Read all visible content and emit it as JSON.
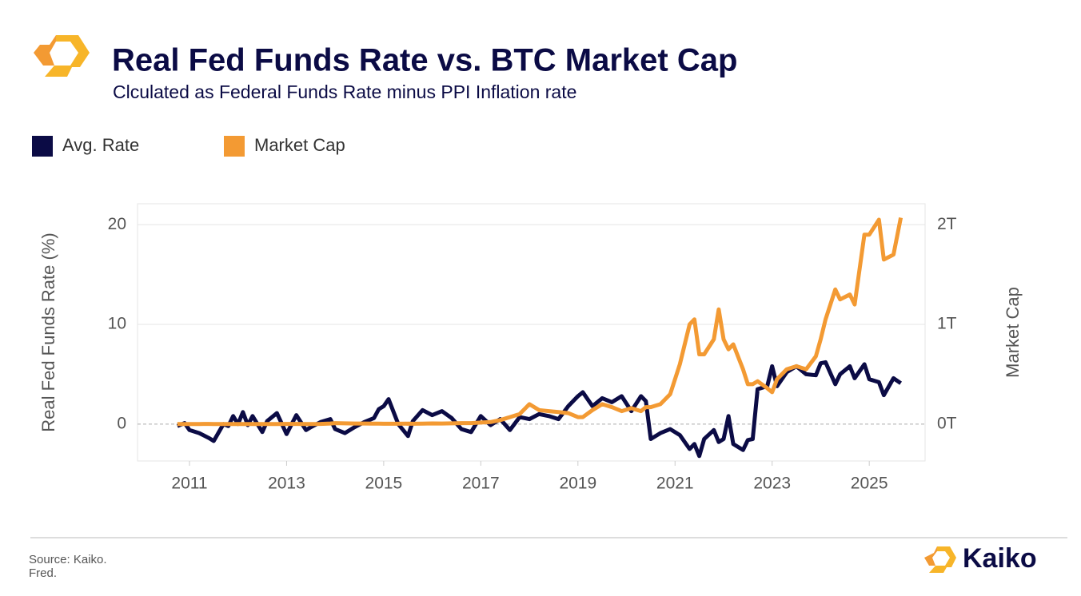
{
  "chart_data": {
    "type": "line",
    "title": "Real Fed Funds Rate vs. BTC Market Cap",
    "subtitle": "Clculated as Federal Funds Rate minus PPI Inflation rate",
    "ylabel": "Real Fed Funds Rate (%)",
    "y2label": "Market Cap",
    "source": [
      "Source: Kaiko.",
      "Fred."
    ],
    "brand": "Kaiko",
    "x": [
      2010.75,
      2010.9,
      2011.0,
      2011.2,
      2011.4,
      2011.5,
      2011.7,
      2011.8,
      2011.9,
      2012.0,
      2012.1,
      2012.2,
      2012.3,
      2012.5,
      2012.6,
      2012.8,
      2013.0,
      2013.2,
      2013.4,
      2013.5,
      2013.7,
      2013.9,
      2014.0,
      2014.2,
      2014.4,
      2014.6,
      2014.8,
      2014.9,
      2015.0,
      2015.1,
      2015.3,
      2015.5,
      2015.6,
      2015.8,
      2016.0,
      2016.2,
      2016.4,
      2016.6,
      2016.8,
      2017.0,
      2017.2,
      2017.4,
      2017.6,
      2017.8,
      2018.0,
      2018.2,
      2018.4,
      2018.6,
      2018.8,
      2019.0,
      2019.1,
      2019.3,
      2019.5,
      2019.7,
      2019.9,
      2020.1,
      2020.3,
      2020.4,
      2020.5,
      2020.7,
      2020.9,
      2021.1,
      2021.3,
      2021.4,
      2021.5,
      2021.6,
      2021.8,
      2021.9,
      2022.0,
      2022.1,
      2022.2,
      2022.4,
      2022.5,
      2022.6,
      2022.7,
      2022.9,
      2023.0,
      2023.1,
      2023.3,
      2023.5,
      2023.7,
      2023.9,
      2024.0,
      2024.1,
      2024.3,
      2024.4,
      2024.6,
      2024.7,
      2024.9,
      2025.0,
      2025.2,
      2025.3,
      2025.5,
      2025.65
    ],
    "series": [
      {
        "name": "Avg. Rate",
        "color": "#0b0b45",
        "values": [
          -0.2,
          0.1,
          -0.6,
          -0.9,
          -1.4,
          -1.7,
          0,
          -0.2,
          0.8,
          0,
          1.2,
          -0.1,
          0.8,
          -0.8,
          0.3,
          1.1,
          -1.0,
          0.9,
          -0.6,
          -0.3,
          0.2,
          0.5,
          -0.5,
          -0.9,
          -0.3,
          0.2,
          0.6,
          1.5,
          1.8,
          2.5,
          0,
          -1.2,
          0.3,
          1.4,
          0.9,
          1.3,
          0.6,
          -0.5,
          -0.8,
          0.8,
          -0.1,
          0.5,
          -0.6,
          0.7,
          0.5,
          1.0,
          0.8,
          0.5,
          1.8,
          2.8,
          3.2,
          1.8,
          2.6,
          2.2,
          2.8,
          1.3,
          2.8,
          2.3,
          -1.5,
          -0.9,
          -0.5,
          -1.1,
          -2.5,
          -2.0,
          -3.2,
          -1.5,
          -0.6,
          -1.8,
          -1.5,
          0.8,
          -2.0,
          -2.6,
          -1.6,
          -1.5,
          3.5,
          3.8,
          5.8,
          3.8,
          5.2,
          5.8,
          5.0,
          4.9,
          6.1,
          6.2,
          4.0,
          5.0,
          5.8,
          4.6,
          6.0,
          4.5,
          4.2,
          2.9,
          4.6,
          4.1
        ]
      },
      {
        "name": "Market Cap",
        "color": "#f39a33",
        "axis": "y2",
        "values": [
          100000000.0,
          100000000.0,
          200000000.0,
          1000000000.0,
          2000000000.0,
          1000000000.0,
          500000000.0,
          400000000.0,
          400000000.0,
          500000000.0,
          500000000.0,
          600000000.0,
          700000000.0,
          1000000000.0,
          1200000000.0,
          1200000000.0,
          1500000000.0,
          1400000000.0,
          1300000000.0,
          1100000000.0,
          1500000000.0,
          6000000000.0,
          10000000000.0,
          7000000000.0,
          6000000000.0,
          6000000000.0,
          4500000000.0,
          4000000000.0,
          3500000000.0,
          3500000000.0,
          3500000000.0,
          4000000000.0,
          3500000000.0,
          4000000000.0,
          6500000000.0,
          6000000000.0,
          7000000000.0,
          10000000000.0,
          10000000000.0,
          15000000000.0,
          20000000000.0,
          40000000000.0,
          70000000000.0,
          100000000000.0,
          200000000000.0,
          140000000000.0,
          130000000000.0,
          120000000000.0,
          110000000000.0,
          70000000000.0,
          70000000000.0,
          140000000000.0,
          200000000000.0,
          170000000000.0,
          130000000000.0,
          160000000000.0,
          130000000000.0,
          170000000000.0,
          170000000000.0,
          200000000000.0,
          300000000000.0,
          600000000000.0,
          1000000000000.0,
          1050000000000.0,
          700000000000.0,
          700000000000.0,
          850000000000.0,
          1150000000000.0,
          850000000000.0,
          750000000000.0,
          800000000000.0,
          550000000000.0,
          400000000000.0,
          400000000000.0,
          430000000000.0,
          360000000000.0,
          320000000000.0,
          450000000000.0,
          550000000000.0,
          580000000000.0,
          550000000000.0,
          680000000000.0,
          850000000000.0,
          1050000000000.0,
          1350000000000.0,
          1250000000000.0,
          1300000000000.0,
          1200000000000.0,
          1900000000000.0,
          1900000000000.0,
          2050000000000.0,
          1650000000000.0,
          1700000000000.0,
          2070000000000.0
        ]
      }
    ],
    "xlim": [
      2009.93,
      2026.15
    ],
    "xticks": [
      2011,
      2013,
      2015,
      2017,
      2019,
      2021,
      2023,
      2025
    ],
    "ylim": [
      -3.7,
      22.1
    ],
    "yticks": [
      0,
      10,
      20
    ],
    "y2lim": [
      -370000000000,
      2210000000000
    ],
    "y2ticks": [
      {
        "value": 0,
        "label": "0T"
      },
      {
        "value": 1000000000000,
        "label": "1T"
      },
      {
        "value": 2000000000000,
        "label": "2T"
      }
    ],
    "grid": true
  }
}
